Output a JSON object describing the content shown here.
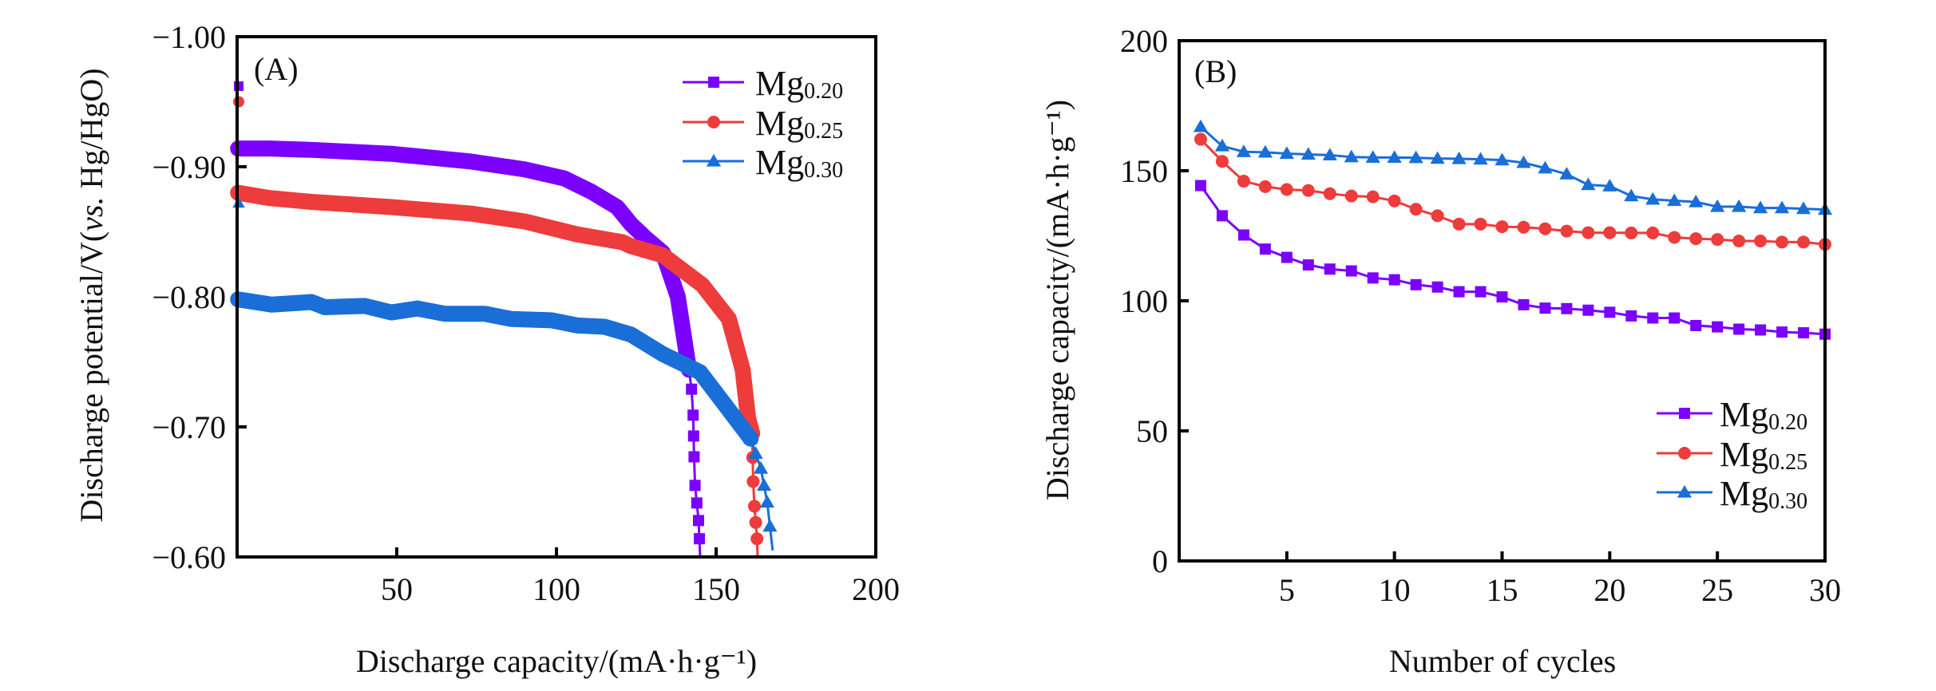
{
  "figure": {
    "panels": [
      "(A)",
      "(B)"
    ]
  },
  "chart_data": [
    {
      "type": "line",
      "panel_label": "(A)",
      "title": "",
      "xlabel": "Discharge capacity/(mA·h·g⁻¹)",
      "ylabel_parts": [
        "Discharge potential/V(",
        "vs.",
        " Hg/HgO)"
      ],
      "xlim": [
        0,
        200
      ],
      "ylim": [
        -1.0,
        -0.6
      ],
      "y_inverted": true,
      "xticks": [
        50,
        100,
        150,
        200
      ],
      "xtick_labels": [
        "50",
        "100",
        "150",
        "200"
      ],
      "yticks": [
        -1.0,
        -0.9,
        -0.8,
        -0.7,
        -0.6
      ],
      "ytick_labels": [
        "−1.00",
        "−0.90",
        "−0.80",
        "−0.70",
        "−0.60"
      ],
      "grid": false,
      "legend_position": "top-right",
      "series": [
        {
          "name": "Mg0.20",
          "base": "Mg",
          "sub": "0.20",
          "color": "#7B00FF",
          "marker": "square",
          "x": [
            0,
            0.3,
            10,
            23.3,
            48.3,
            73.3,
            90,
            102.5,
            110.8,
            119,
            123.3,
            128,
            133.3,
            138,
            141.5,
            142.3,
            142.8,
            143.1,
            143.4,
            144.5,
            145
          ],
          "y": [
            -0.962,
            -0.914,
            -0.914,
            -0.913,
            -0.91,
            -0.904,
            -0.898,
            -0.891,
            -0.881,
            -0.869,
            -0.856,
            -0.845,
            -0.834,
            -0.8,
            -0.744,
            -0.729,
            -0.709,
            -0.677,
            -0.655,
            -0.628,
            -0.6
          ],
          "sparse_markers_from_index": 14
        },
        {
          "name": "Mg0.25",
          "base": "Mg",
          "sub": "0.25",
          "color": "#EE3B3B",
          "marker": "circle",
          "x": [
            0,
            0.3,
            10,
            23.3,
            48.3,
            73.3,
            90,
            106.5,
            120.7,
            123.3,
            133.3,
            145.7,
            154,
            158.3,
            160,
            161.3,
            161.6,
            162,
            162.8,
            163
          ],
          "y": [
            -0.95,
            -0.88,
            -0.876,
            -0.873,
            -0.869,
            -0.864,
            -0.858,
            -0.848,
            -0.842,
            -0.839,
            -0.832,
            -0.809,
            -0.783,
            -0.744,
            -0.707,
            -0.695,
            -0.658,
            -0.639,
            -0.614,
            -0.6
          ],
          "sparse_markers_from_index": 15
        },
        {
          "name": "Mg0.30",
          "base": "Mg",
          "sub": "0.30",
          "color": "#1A6ED8",
          "marker": "triangle",
          "x": [
            0,
            0.3,
            10.8,
            23.3,
            27.5,
            40,
            48.3,
            56.5,
            65,
            77.5,
            85.8,
            98.3,
            106.5,
            115,
            123.3,
            133.3,
            145,
            154,
            160.8,
            164,
            166,
            167.7
          ],
          "y": [
            -0.872,
            -0.798,
            -0.794,
            -0.796,
            -0.792,
            -0.793,
            -0.788,
            -0.791,
            -0.787,
            -0.787,
            -0.783,
            -0.782,
            -0.778,
            -0.777,
            -0.771,
            -0.756,
            -0.742,
            -0.713,
            -0.691,
            -0.668,
            -0.642,
            -0.605
          ],
          "sparse_markers_from_index": 18
        }
      ]
    },
    {
      "type": "line",
      "panel_label": "(B)",
      "title": "",
      "xlabel": "Number of cycles",
      "ylabel": "Discharge capacity/(mA·h·g⁻¹)",
      "xlim": [
        0,
        30
      ],
      "ylim": [
        0,
        200
      ],
      "xticks": [
        5,
        10,
        15,
        20,
        25,
        30
      ],
      "xtick_labels": [
        "5",
        "10",
        "15",
        "20",
        "25",
        "30"
      ],
      "yticks": [
        0,
        50,
        100,
        150,
        200
      ],
      "ytick_labels": [
        "0",
        "50",
        "100",
        "150",
        "200"
      ],
      "grid": false,
      "legend_position": "bottom-right",
      "x": [
        1,
        2,
        3,
        4,
        5,
        6,
        7,
        8,
        9,
        10,
        11,
        12,
        13,
        14,
        15,
        16,
        17,
        18,
        19,
        20,
        21,
        22,
        23,
        24,
        25,
        26,
        27,
        28,
        29,
        30
      ],
      "series": [
        {
          "name": "Mg0.20",
          "base": "Mg",
          "sub": "0.20",
          "color": "#7B00FF",
          "marker": "square",
          "values": [
            144.3,
            132.7,
            125.3,
            119.9,
            116.7,
            113.8,
            112.2,
            111.5,
            108.8,
            108.1,
            106.2,
            105.3,
            103.5,
            103.5,
            101.5,
            98.5,
            97.2,
            97.0,
            96.4,
            95.6,
            94.2,
            93.4,
            93.4,
            90.5,
            90.0,
            89.1,
            88.8,
            88.0,
            87.7,
            87.2
          ]
        },
        {
          "name": "Mg0.25",
          "base": "Mg",
          "sub": "0.25",
          "color": "#EE3B3B",
          "marker": "circle",
          "values": [
            162.1,
            153.6,
            146.0,
            143.9,
            142.8,
            142.4,
            141.2,
            140.3,
            140.0,
            138.4,
            135.2,
            132.7,
            129.5,
            129.5,
            128.5,
            128.3,
            127.7,
            126.8,
            126.2,
            126.2,
            126.1,
            126.1,
            124.4,
            123.9,
            123.6,
            123.0,
            123.0,
            122.6,
            122.6,
            121.7
          ]
        },
        {
          "name": "Mg0.30",
          "base": "Mg",
          "sub": "0.30",
          "color": "#1A6ED8",
          "marker": "triangle",
          "values": [
            166.9,
            159.5,
            157.3,
            157.1,
            156.6,
            156.3,
            156.0,
            155.3,
            155.1,
            155.1,
            155.0,
            154.7,
            154.6,
            154.4,
            154.1,
            153.1,
            151.0,
            148.7,
            144.6,
            144.1,
            140.3,
            139.0,
            138.5,
            138.0,
            136.2,
            136.2,
            135.7,
            135.7,
            135.4,
            135.1
          ]
        }
      ]
    }
  ]
}
